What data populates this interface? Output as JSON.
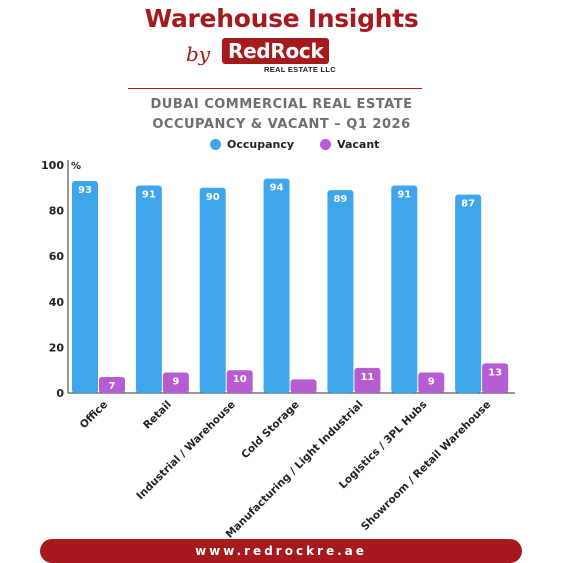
{
  "header": {
    "title": "Warehouse Insights",
    "by": "by",
    "logo_text": "RedRock",
    "logo_sub": "REAL ESTATE LLC"
  },
  "chart_data": {
    "type": "bar",
    "title": "DUBAI COMMERCIAL REAL ESTATE OCCUPANCY & VACANT – Q1 2026",
    "title_lines": [
      "DUBAI COMMERCIAL REAL ESTATE",
      "OCCUPANCY & VACANT – Q1 2026"
    ],
    "ylabel": "%",
    "ylim": [
      0,
      100
    ],
    "yticks": [
      0,
      20,
      40,
      60,
      80,
      100
    ],
    "grid": false,
    "legend_position": "top-center",
    "categories": [
      "Office",
      "Retail",
      "Industrial / Warehouse",
      "Cold Storage",
      "Manufacturing / Light Industrial",
      "Logistics / 3PL Hubs",
      "Showroom / Retail Warehouse"
    ],
    "series": [
      {
        "name": "Occupancy",
        "color": "#3ea6ec",
        "values": [
          93,
          91,
          90,
          94,
          89,
          91,
          87
        ],
        "labels": [
          "93",
          "91",
          "90",
          "94",
          "89",
          "91",
          "87"
        ]
      },
      {
        "name": "Vacant",
        "color": "#b65dd3",
        "values": [
          7,
          9,
          10,
          6,
          11,
          9,
          13
        ],
        "labels": [
          "7",
          "9",
          "10",
          "",
          "11",
          "9",
          "13"
        ]
      }
    ]
  },
  "footer": {
    "url": "www.redrockre.ae"
  }
}
